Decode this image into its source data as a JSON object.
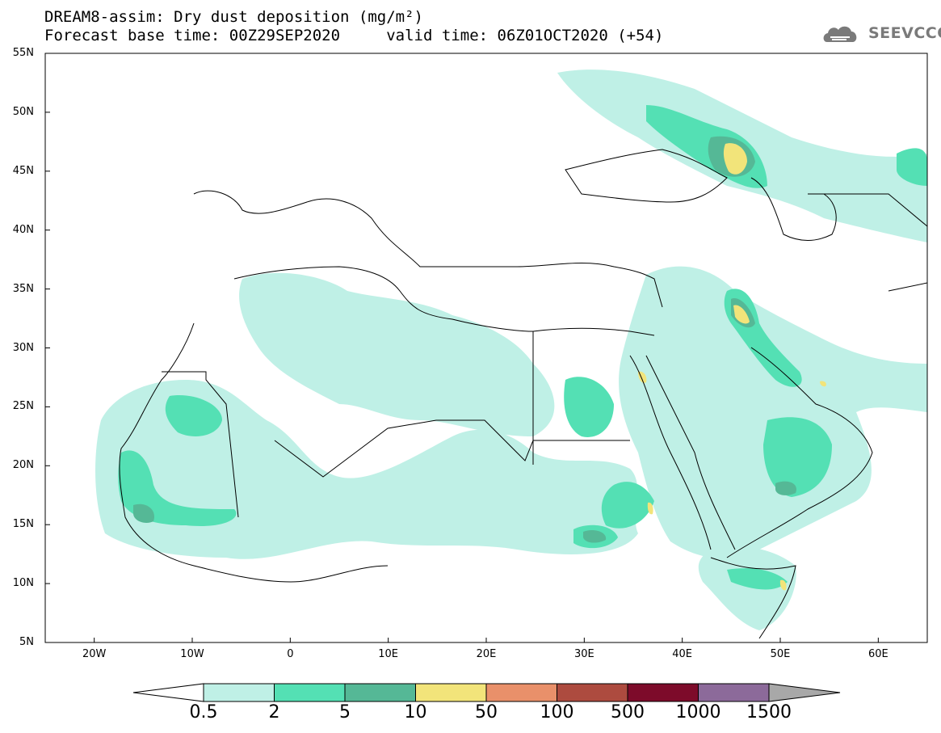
{
  "title": {
    "line1": "DREAM8-assim: Dry dust deposition (mg/m²)",
    "line2": "Forecast base time: 00Z29SEP2020     valid time: 06Z01OCT2020 (+54)"
  },
  "logo": {
    "text": "SEEVCCC",
    "icon": "cloud-logo-icon",
    "color": "#7a7a7a"
  },
  "map": {
    "lat_range": [
      5,
      55
    ],
    "lon_range": [
      -25,
      65
    ],
    "lat_ticks": [
      "55N",
      "50N",
      "45N",
      "40N",
      "35N",
      "30N",
      "25N",
      "20N",
      "15N",
      "10N",
      "5N"
    ],
    "lon_ticks": [
      "20W",
      "10W",
      "0",
      "10E",
      "20E",
      "30E",
      "40E",
      "50E",
      "60E"
    ]
  },
  "colorbar": {
    "labels": [
      "0.5",
      "2",
      "5",
      "10",
      "50",
      "100",
      "500",
      "1000",
      "1500"
    ],
    "colors": [
      "#bff0e6",
      "#54e0b4",
      "#55b896",
      "#f2e47a",
      "#e9906a",
      "#ad4b3f",
      "#7d0b2a",
      "#8c6a9a",
      "#a8a8a8"
    ],
    "under_color": "#ffffff",
    "over_color": "#a8a8a8"
  }
}
